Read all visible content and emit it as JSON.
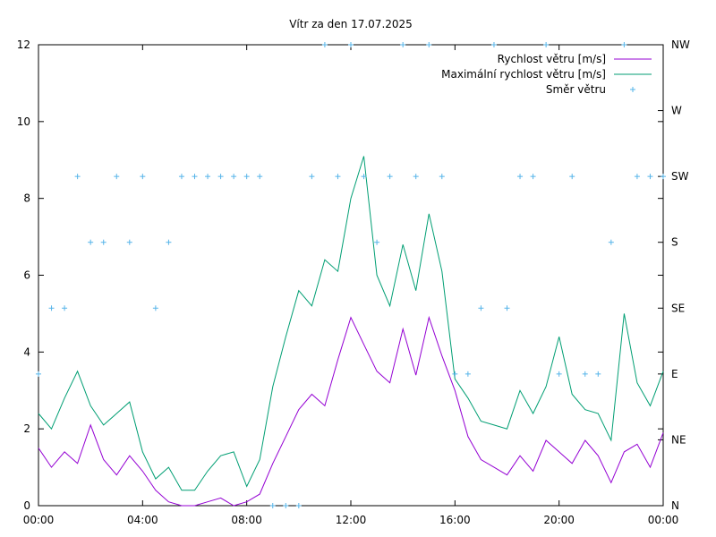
{
  "chart_data": {
    "type": "line",
    "title": "Vítr za den 17.07.2025",
    "x_ticks": [
      "00:00",
      "04:00",
      "08:00",
      "12:00",
      "16:00",
      "20:00",
      "00:00"
    ],
    "y_ticks": [
      "0",
      "2",
      "4",
      "6",
      "8",
      "10",
      "12"
    ],
    "y2_ticks": [
      "N",
      "NE",
      "E",
      "SE",
      "S",
      "SW",
      "W",
      "NW"
    ],
    "xlim": [
      "00:00",
      "24:00"
    ],
    "ylim": [
      0,
      12
    ],
    "grid": false,
    "legend_position": "top-right",
    "colors": {
      "speed": "#9400d3",
      "gust": "#009e73",
      "direction": "#56b4e9"
    },
    "series": [
      {
        "name": "Rychlost větru [m/s]",
        "style": "line",
        "x": [
          "00:00",
          "00:30",
          "01:00",
          "01:30",
          "02:00",
          "02:30",
          "03:00",
          "03:30",
          "04:00",
          "04:30",
          "05:00",
          "05:30",
          "06:00",
          "06:30",
          "07:00",
          "07:30",
          "08:00",
          "08:30",
          "09:00",
          "09:30",
          "10:00",
          "10:30",
          "11:00",
          "11:30",
          "12:00",
          "12:30",
          "13:00",
          "13:30",
          "14:00",
          "14:30",
          "15:00",
          "15:30",
          "16:00",
          "16:30",
          "17:00",
          "17:30",
          "18:00",
          "18:30",
          "19:00",
          "19:30",
          "20:00",
          "20:30",
          "21:00",
          "21:30",
          "22:00",
          "22:30",
          "23:00",
          "23:30",
          "24:00"
        ],
        "values": [
          1.5,
          1.0,
          1.4,
          1.1,
          2.1,
          1.2,
          0.8,
          1.3,
          0.9,
          0.4,
          0.1,
          0.0,
          0.0,
          0.1,
          0.2,
          0.0,
          0.1,
          0.3,
          1.1,
          1.8,
          2.5,
          2.9,
          2.6,
          3.8,
          4.9,
          4.2,
          3.5,
          3.2,
          4.6,
          3.4,
          4.9,
          3.9,
          3.0,
          1.8,
          1.2,
          1.0,
          0.8,
          1.3,
          0.9,
          1.7,
          1.4,
          1.1,
          1.7,
          1.3,
          0.6,
          1.4,
          1.6,
          1.0,
          1.9
        ]
      },
      {
        "name": "Maximální rychlost větru [m/s]",
        "style": "line",
        "x": [
          "00:00",
          "00:30",
          "01:00",
          "01:30",
          "02:00",
          "02:30",
          "03:00",
          "03:30",
          "04:00",
          "04:30",
          "05:00",
          "05:30",
          "06:00",
          "06:30",
          "07:00",
          "07:30",
          "08:00",
          "08:30",
          "09:00",
          "09:30",
          "10:00",
          "10:30",
          "11:00",
          "11:30",
          "12:00",
          "12:30",
          "13:00",
          "13:30",
          "14:00",
          "14:30",
          "15:00",
          "15:30",
          "16:00",
          "16:30",
          "17:00",
          "17:30",
          "18:00",
          "18:30",
          "19:00",
          "19:30",
          "20:00",
          "20:30",
          "21:00",
          "21:30",
          "22:00",
          "22:30",
          "23:00",
          "23:30",
          "24:00"
        ],
        "values": [
          2.4,
          2.0,
          2.8,
          3.5,
          2.6,
          2.1,
          2.4,
          2.7,
          1.4,
          0.7,
          1.0,
          0.4,
          0.4,
          0.9,
          1.3,
          1.4,
          0.5,
          1.2,
          3.1,
          4.4,
          5.6,
          5.2,
          6.4,
          6.1,
          8.0,
          9.1,
          6.0,
          5.2,
          6.8,
          5.6,
          7.6,
          6.1,
          3.3,
          2.8,
          2.2,
          2.1,
          2.0,
          3.0,
          2.4,
          3.1,
          4.4,
          2.9,
          2.5,
          2.4,
          1.7,
          5.0,
          3.2,
          2.6,
          3.5
        ]
      },
      {
        "name": "Směr větru",
        "style": "points",
        "x": [
          "00:00",
          "00:30",
          "01:00",
          "01:30",
          "02:00",
          "02:30",
          "03:00",
          "03:30",
          "04:00",
          "04:30",
          "05:00",
          "05:30",
          "06:00",
          "06:30",
          "07:00",
          "07:30",
          "08:00",
          "08:30",
          "09:00",
          "09:30",
          "10:00",
          "10:30",
          "11:00",
          "11:30",
          "12:00",
          "12:30",
          "13:00",
          "13:30",
          "14:00",
          "14:30",
          "15:00",
          "15:30",
          "16:00",
          "16:30",
          "17:00",
          "17:30",
          "18:00",
          "18:30",
          "19:00",
          "19:30",
          "20:00",
          "20:30",
          "21:00",
          "21:30",
          "22:00",
          "22:30",
          "23:00",
          "23:30",
          "24:00"
        ],
        "values": [
          "E",
          "SE",
          "SE",
          "SW",
          "S",
          "S",
          "SW",
          "S",
          "SW",
          "SE",
          "S",
          "SW",
          "SW",
          "SW",
          "SW",
          "SW",
          "SW",
          "SW",
          "N",
          "N",
          "N",
          "SW",
          "NW",
          "SW",
          "NW",
          "SW",
          "S",
          "SW",
          "NW",
          "SW",
          "NW",
          "SW",
          "E",
          "E",
          "SE",
          "NW",
          "SE",
          "SW",
          "SW",
          "NW",
          "E",
          "SW",
          "E",
          "E",
          "S",
          "NW",
          "SW",
          "SW",
          "SW"
        ]
      }
    ]
  }
}
